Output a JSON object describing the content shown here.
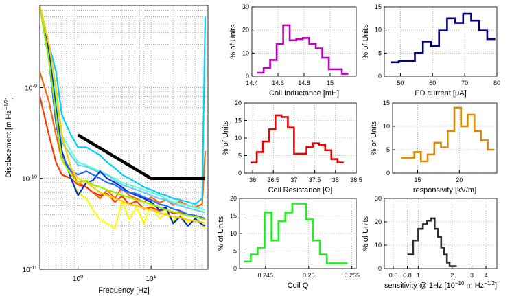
{
  "charts": [
    {
      "id": "spectrum",
      "type": "line",
      "xlabel": "Frequency [Hz]",
      "ylabel": "Displacement [m Hz^-1/2]",
      "x_scale": "log",
      "y_scale": "log",
      "xlim": [
        0.3,
        60
      ],
      "ylim": [
        1e-11,
        8e-09
      ],
      "x_tick_labels": [
        {
          "v": 1,
          "base": "10",
          "exp": "0"
        },
        {
          "v": 10,
          "base": "10",
          "exp": "1"
        }
      ],
      "y_tick_labels": [
        {
          "v": 1e-09,
          "base": "10",
          "exp": "-9"
        },
        {
          "v": 1e-10,
          "base": "10",
          "exp": "-10"
        },
        {
          "v": 1e-11,
          "base": "10",
          "exp": "-11"
        }
      ],
      "grid": true,
      "requirement": {
        "color": "#000000",
        "x": [
          1,
          10,
          55
        ],
        "y": [
          3e-10,
          1e-10,
          1e-10
        ]
      },
      "series": [
        {
          "color": "#ffff00",
          "x": [
            0.3,
            0.4,
            0.5,
            0.6,
            0.8,
            1.0,
            1.3,
            1.6,
            2.0,
            2.5,
            3.2,
            4.0,
            5.0,
            6.3,
            8.0,
            10,
            13,
            16,
            20,
            25,
            32,
            40,
            50,
            55
          ],
          "y": [
            8e-09,
            3e-09,
            8e-10,
            2e-10,
            1e-10,
            7e-11,
            6e-11,
            4.5e-11,
            3.5e-11,
            3.2e-11,
            2.8e-11,
            5.8e-11,
            3.5e-11,
            4.8e-11,
            3.2e-11,
            5.3e-11,
            3.6e-11,
            4.2e-11,
            3.4e-11,
            3.9e-11,
            3.3e-11,
            3.5e-11,
            3.1e-11,
            2.8e-11
          ]
        },
        {
          "color": "#ff6600",
          "x": [
            0.3,
            0.4,
            0.5,
            0.6,
            0.8,
            1.0,
            1.3,
            1.6,
            2.0,
            2.5,
            3.2,
            4.0,
            5.0,
            6.3,
            8.0,
            10,
            13,
            16,
            20,
            25,
            32,
            40,
            50,
            55
          ],
          "y": [
            1.5e-09,
            7e-10,
            3e-10,
            1.6e-10,
            1.2e-10,
            9e-11,
            8e-11,
            7e-11,
            6e-11,
            7.5e-11,
            6e-11,
            8e-11,
            6.5e-11,
            6e-11,
            5.5e-11,
            6.2e-11,
            5.4e-11,
            5.8e-11,
            5.1e-11,
            5.6e-11,
            5e-11,
            4.8e-11,
            5.2e-11,
            2e-10
          ]
        },
        {
          "color": "#ff3300",
          "x": [
            0.3,
            0.4,
            0.5,
            0.6,
            0.8,
            1.0,
            1.3,
            1.6,
            2.0,
            2.5,
            3.2,
            4.0,
            5.0,
            6.3,
            8.0,
            10,
            13,
            16,
            20,
            25,
            32,
            40,
            50,
            55
          ],
          "y": [
            8e-10,
            3e-10,
            1.5e-10,
            1.1e-10,
            1e-10,
            8.5e-11,
            8e-11,
            7e-11,
            6.5e-11,
            6.8e-11,
            5.5e-11,
            6.4e-11,
            5.2e-11,
            5.6e-11,
            4.6e-11,
            4.8e-11,
            4.4e-11,
            4.6e-11,
            4.1e-11,
            4.3e-11,
            3.9e-11,
            3.8e-11,
            3.6e-11,
            3.5e-11
          ]
        },
        {
          "color": "#00d0ff",
          "x": [
            0.3,
            0.4,
            0.5,
            0.6,
            0.8,
            1.0,
            1.3,
            1.6,
            2.0,
            2.5,
            3.2,
            4.0,
            5.0,
            6.3,
            8.0,
            10,
            13,
            16,
            20,
            25,
            32,
            40,
            50,
            55
          ],
          "y": [
            8e-09,
            3e-09,
            1.5e-09,
            5e-10,
            3e-10,
            2.2e-10,
            2.2e-10,
            2e-10,
            1.8e-10,
            1.5e-10,
            1.3e-10,
            1.1e-10,
            1e-10,
            9e-11,
            8e-11,
            7.5e-11,
            6.8e-11,
            6.5e-11,
            6e-11,
            5.8e-11,
            5.5e-11,
            5.2e-11,
            6e-11,
            6e-09
          ]
        },
        {
          "color": "#66ffcc",
          "x": [
            0.3,
            0.4,
            0.5,
            0.6,
            0.8,
            1.0,
            1.3,
            1.6,
            2.0,
            2.5,
            3.2,
            4.0,
            5.0,
            6.3,
            8.0,
            10,
            13,
            16,
            20,
            25,
            32,
            40,
            50,
            55
          ],
          "y": [
            8e-09,
            2.5e-09,
            8e-10,
            3e-10,
            2e-10,
            1.5e-10,
            1.4e-10,
            1.3e-10,
            1.2e-10,
            1.1e-10,
            1e-10,
            9e-11,
            8.5e-11,
            8e-11,
            7.5e-11,
            7e-11,
            6.5e-11,
            6e-11,
            5.5e-11,
            5.3e-11,
            5e-11,
            4.8e-11,
            4.6e-11,
            4.5e-11
          ]
        },
        {
          "color": "#66ccff",
          "x": [
            0.3,
            0.4,
            0.5,
            0.6,
            0.8,
            1.0,
            1.3,
            1.6,
            2.0,
            2.5,
            3.2,
            4.0,
            5.0,
            6.3,
            8.0,
            10,
            13,
            16,
            20,
            25,
            32,
            40,
            50,
            55
          ],
          "y": [
            8e-09,
            2e-09,
            5e-10,
            2.5e-10,
            1.8e-10,
            1.4e-10,
            1.35e-10,
            1.25e-10,
            1.15e-10,
            1.1e-10,
            9.5e-11,
            8.5e-11,
            8e-11,
            7.5e-11,
            7e-11,
            6.5e-11,
            6e-11,
            5.8e-11,
            5.3e-11,
            5e-11,
            4.7e-11,
            4.5e-11,
            4.3e-11,
            4.2e-11
          ]
        },
        {
          "color": "#0033cc",
          "x": [
            0.3,
            0.4,
            0.5,
            0.6,
            0.8,
            1.0,
            1.3,
            1.6,
            2.0,
            2.5,
            3.2,
            4.0,
            5.0,
            6.3,
            8.0,
            10,
            13,
            16,
            20,
            25,
            32,
            40,
            50,
            55
          ],
          "y": [
            8e-09,
            2.5e-09,
            6e-10,
            2e-10,
            1e-10,
            6.5e-11,
            9e-11,
            9.5e-11,
            1.2e-10,
            1e-10,
            9e-11,
            8e-11,
            7e-11,
            6.5e-11,
            6e-11,
            5.5e-11,
            4.5e-11,
            4.8e-11,
            3.2e-11,
            3.8e-11,
            3e-11,
            3.6e-11,
            3.1e-11,
            3e-11
          ]
        },
        {
          "color": "#2266ff",
          "x": [
            0.3,
            0.4,
            0.5,
            0.6,
            0.8,
            1.0,
            1.3,
            1.6,
            2.0,
            2.5,
            3.2,
            4.0,
            5.0,
            6.3,
            8.0,
            10,
            13,
            16,
            20,
            25,
            32,
            40,
            50,
            55
          ],
          "y": [
            8e-09,
            2e-09,
            4e-10,
            1.8e-10,
            1.2e-10,
            1.1e-10,
            1.2e-10,
            1.1e-10,
            1e-10,
            9e-11,
            8.5e-11,
            7.5e-11,
            7e-11,
            6.8e-11,
            6.2e-11,
            5.8e-11,
            5.2e-11,
            5e-11,
            4.6e-11,
            4.4e-11,
            4e-11,
            3.9e-11,
            3.7e-11,
            3.6e-11
          ]
        },
        {
          "color": "#99ee00",
          "x": [
            0.3,
            0.4,
            0.5,
            0.6,
            0.8,
            1.0,
            1.3,
            1.6,
            2.0,
            2.5,
            3.2,
            4.0,
            5.0,
            6.3,
            8.0,
            10,
            13,
            16,
            20,
            25,
            32,
            40,
            50,
            55
          ],
          "y": [
            8e-09,
            2e-09,
            5e-10,
            1.6e-10,
            1.1e-10,
            9e-11,
            9.5e-11,
            8.5e-11,
            8e-11,
            7.5e-11,
            7e-11,
            6.5e-11,
            6.2e-11,
            5.8e-11,
            5.5e-11,
            5.2e-11,
            4.8e-11,
            4.5e-11,
            4.3e-11,
            4.1e-11,
            3.9e-11,
            3.8e-11,
            3.6e-11,
            3.5e-11
          ]
        },
        {
          "color": "#ffcc00",
          "x": [
            0.3,
            0.4,
            0.5,
            0.6,
            0.8,
            1.0,
            1.3,
            1.6,
            2.0,
            2.5,
            3.2,
            4.0,
            5.0,
            6.3,
            8.0,
            10,
            13,
            16,
            20,
            25,
            32,
            40,
            50,
            55
          ],
          "y": [
            8e-09,
            3e-09,
            1e-09,
            3e-10,
            1.3e-10,
            1e-10,
            9e-11,
            8e-11,
            7e-11,
            6.5e-11,
            6e-11,
            5.6e-11,
            5.2e-11,
            5e-11,
            4.7e-11,
            4.5e-11,
            4.2e-11,
            4e-11,
            3.8e-11,
            3.7e-11,
            3.5e-11,
            3.4e-11,
            3.3e-11,
            3.2e-11
          ]
        }
      ]
    },
    {
      "id": "inductance",
      "type": "histogram",
      "color": "#bb00bb",
      "xlabel": "Coil Inductance [mH]",
      "ylabel": "% of Units",
      "xlim": [
        14.4,
        15.2
      ],
      "ylim": [
        0,
        30
      ],
      "x_ticks": [
        14.4,
        14.6,
        14.8,
        15
      ],
      "x_tick_labels": [
        "14.4",
        "14.6",
        "14.8",
        "15"
      ],
      "y_ticks": [
        0,
        10,
        20,
        30
      ],
      "y_tick_labels": [
        "0",
        "10",
        "20",
        "30"
      ],
      "edges": [
        14.44,
        14.49,
        14.54,
        14.59,
        14.64,
        14.69,
        14.74,
        14.79,
        14.84,
        14.89,
        14.94,
        14.99,
        15.04,
        15.09,
        15.14
      ],
      "values": [
        1.5,
        3.5,
        7,
        14,
        22,
        15.5,
        16,
        16.5,
        14,
        12,
        8,
        3,
        3,
        1
      ]
    },
    {
      "id": "pd_current",
      "type": "histogram",
      "color": "#000080",
      "xlabel": "PD current [μA]",
      "ylabel": "% of Units",
      "xlim": [
        45,
        80
      ],
      "ylim": [
        0,
        15
      ],
      "x_ticks": [
        50,
        60,
        70,
        80
      ],
      "x_tick_labels": [
        "50",
        "60",
        "70",
        "80"
      ],
      "y_ticks": [
        0,
        5,
        10,
        15
      ],
      "y_tick_labels": [
        "0",
        "5",
        "10",
        "15"
      ],
      "edges": [
        47,
        49.5,
        52,
        54.5,
        57,
        59.5,
        62,
        64.5,
        67,
        69.5,
        72,
        74.5,
        77,
        79.5
      ],
      "values": [
        3,
        3.3,
        3.3,
        5,
        7.5,
        6.5,
        10,
        12.5,
        11.5,
        13.5,
        12,
        10,
        8
      ]
    },
    {
      "id": "resistance",
      "type": "histogram",
      "color": "#ee0000",
      "xlabel": "Coil Resistance [Ω]",
      "ylabel": "% of Units",
      "xlim": [
        35.8,
        38.5
      ],
      "ylim": [
        0,
        20
      ],
      "x_ticks": [
        36,
        36.5,
        37,
        37.5,
        38,
        38.5
      ],
      "x_tick_labels": [
        "36",
        "36.5",
        "37",
        "37.5",
        "38",
        "38.5"
      ],
      "y_ticks": [
        0,
        5,
        10,
        15,
        20
      ],
      "y_tick_labels": [
        "0",
        "5",
        "10",
        "15",
        "20"
      ],
      "edges": [
        35.95,
        36.1,
        36.25,
        36.4,
        36.55,
        36.7,
        36.85,
        37.0,
        37.15,
        37.3,
        37.45,
        37.6,
        37.75,
        37.9,
        38.05,
        38.2
      ],
      "values": [
        3,
        6,
        9,
        12.5,
        16.5,
        16,
        13,
        5.5,
        5.5,
        7.5,
        8.5,
        8,
        6.5,
        4,
        3
      ]
    },
    {
      "id": "responsivity",
      "type": "histogram",
      "color": "#dd8800",
      "xlabel": "responsivity [kV/m]",
      "ylabel": "% of Units",
      "xlim": [
        12,
        24.5
      ],
      "ylim": [
        0,
        15
      ],
      "x_ticks": [
        15,
        20
      ],
      "x_tick_labels": [
        "15",
        "20"
      ],
      "y_ticks": [
        0,
        5,
        10,
        15
      ],
      "y_tick_labels": [
        "0",
        "5",
        "10",
        "15"
      ],
      "edges": [
        13,
        13.8,
        14.6,
        15.4,
        16.2,
        17,
        17.8,
        18.6,
        19.4,
        20.2,
        21,
        21.8,
        22.6,
        23.4,
        24.2
      ],
      "values": [
        3.3,
        3.3,
        4.5,
        2.5,
        4,
        6.5,
        5.5,
        9,
        14,
        10,
        12.5,
        9,
        7,
        5
      ]
    },
    {
      "id": "coil_q",
      "type": "histogram",
      "color": "#22ee22",
      "xlabel": "Coil Q",
      "ylabel": "% of Units",
      "xlim": [
        0.242,
        0.2555
      ],
      "ylim": [
        0,
        20
      ],
      "x_ticks": [
        0.245,
        0.25,
        0.255
      ],
      "x_tick_labels": [
        "0.245",
        "0.25",
        "0.255"
      ],
      "y_ticks": [
        0,
        5,
        10,
        15,
        20
      ],
      "y_tick_labels": [
        "0",
        "5",
        "10",
        "15",
        "20"
      ],
      "edges": [
        0.2425,
        0.2433,
        0.2441,
        0.2449,
        0.2457,
        0.2465,
        0.2473,
        0.2481,
        0.2489,
        0.2497,
        0.2505,
        0.2513,
        0.2521,
        0.2529,
        0.2537,
        0.2545
      ],
      "values": [
        2,
        4,
        6,
        16,
        8,
        13.5,
        16,
        18.5,
        18.5,
        14,
        8,
        4,
        1.5,
        1.5,
        1.5
      ]
    },
    {
      "id": "sensitivity",
      "type": "histogram",
      "color": "#303030",
      "xlabel": "sensitivity @ 1Hz   [10^-10 m Hz^-1/2]",
      "ylabel": "% of Units",
      "x_scale": "log",
      "xlim": [
        0.5,
        5
      ],
      "ylim": [
        0,
        30
      ],
      "x_ticks": [
        0.6,
        0.8,
        1,
        2,
        3,
        4
      ],
      "x_tick_labels": [
        "0.6",
        "0.8",
        "1",
        "2",
        "3",
        "4"
      ],
      "y_ticks": [
        0,
        10,
        20,
        30
      ],
      "y_tick_labels": [
        "0",
        "10",
        "20",
        "30"
      ],
      "edges": [
        0.8,
        0.9,
        1.0,
        1.1,
        1.2,
        1.3,
        1.4,
        1.5,
        1.6,
        1.7,
        1.8,
        1.9,
        2.0,
        2.1,
        2.2
      ],
      "values": [
        6,
        12,
        17,
        19,
        20.5,
        21.5,
        17,
        13.5,
        9,
        6,
        2.5,
        1,
        1,
        1
      ]
    }
  ]
}
